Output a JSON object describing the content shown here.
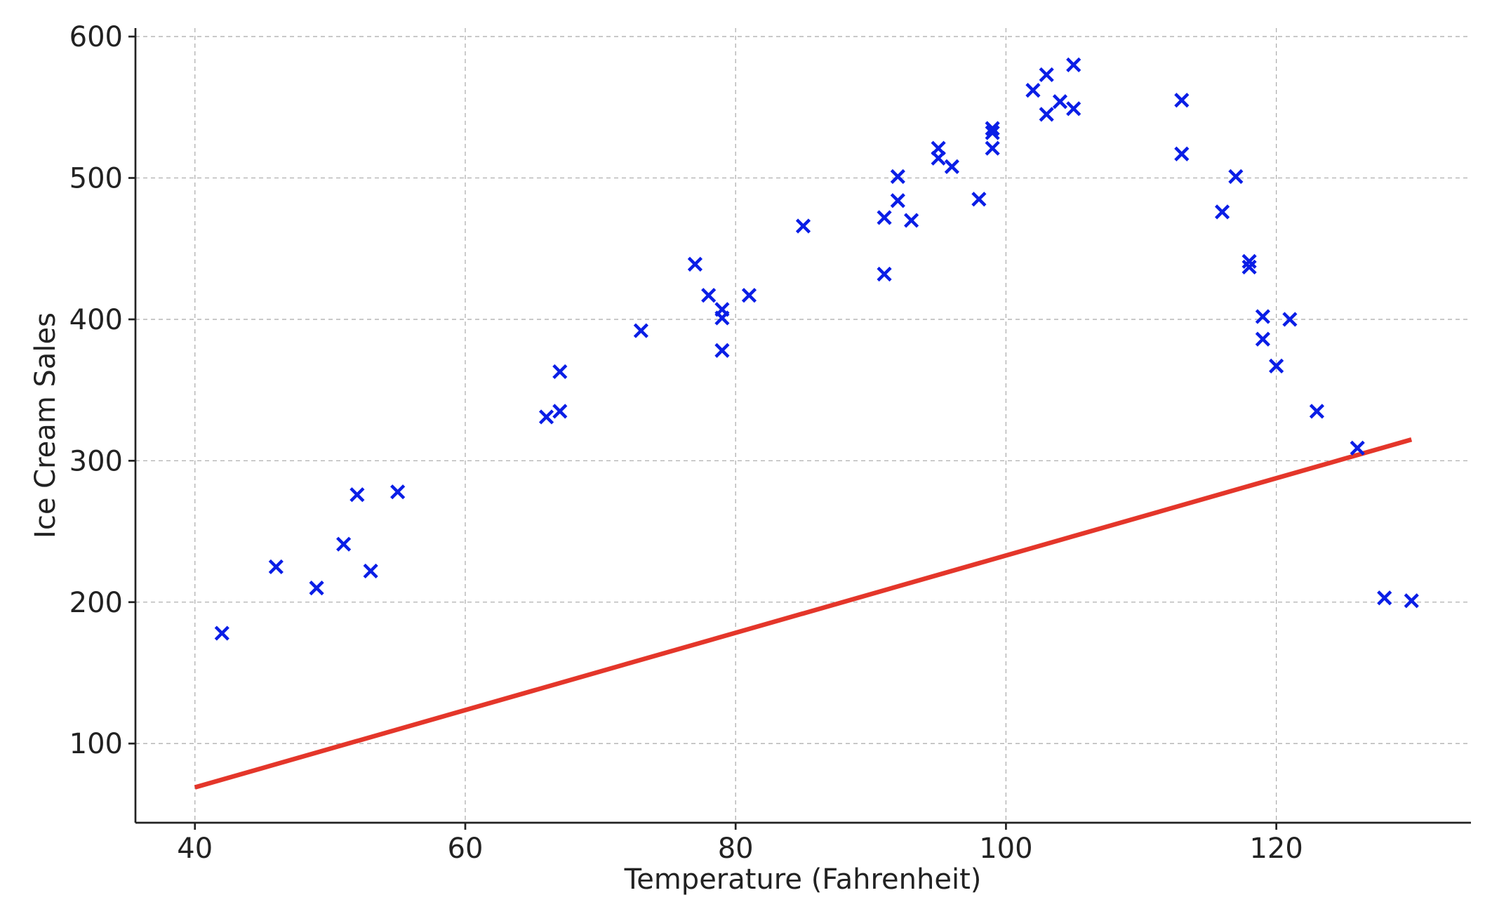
{
  "chart_data": {
    "type": "scatter",
    "title": "",
    "xlabel": "Temperature (Fahrenheit)",
    "ylabel": "Ice Cream Sales",
    "xlim": [
      35.6,
      134.4
    ],
    "ylim": [
      44,
      606
    ],
    "x_ticks": [
      40,
      60,
      80,
      100,
      120
    ],
    "y_ticks": [
      100,
      200,
      300,
      400,
      500,
      600
    ],
    "grid": true,
    "legend": "none",
    "colors": {
      "points": "#0a1ee6",
      "fit_line": "#e4362a"
    },
    "series": [
      {
        "type": "scatter",
        "marker": "x",
        "points": [
          {
            "x": 42,
            "y": 178
          },
          {
            "x": 46,
            "y": 225
          },
          {
            "x": 49,
            "y": 210
          },
          {
            "x": 51,
            "y": 241
          },
          {
            "x": 52,
            "y": 276
          },
          {
            "x": 53,
            "y": 222
          },
          {
            "x": 55,
            "y": 278
          },
          {
            "x": 66,
            "y": 331
          },
          {
            "x": 67,
            "y": 363
          },
          {
            "x": 67,
            "y": 335
          },
          {
            "x": 73,
            "y": 392
          },
          {
            "x": 77,
            "y": 439
          },
          {
            "x": 78,
            "y": 417
          },
          {
            "x": 79,
            "y": 407
          },
          {
            "x": 79,
            "y": 401
          },
          {
            "x": 79,
            "y": 378
          },
          {
            "x": 81,
            "y": 417
          },
          {
            "x": 85,
            "y": 466
          },
          {
            "x": 91,
            "y": 472
          },
          {
            "x": 91,
            "y": 432
          },
          {
            "x": 92,
            "y": 501
          },
          {
            "x": 92,
            "y": 484
          },
          {
            "x": 93,
            "y": 470
          },
          {
            "x": 95,
            "y": 521
          },
          {
            "x": 95,
            "y": 514
          },
          {
            "x": 96,
            "y": 508
          },
          {
            "x": 98,
            "y": 485
          },
          {
            "x": 99,
            "y": 535
          },
          {
            "x": 99,
            "y": 532
          },
          {
            "x": 99,
            "y": 521
          },
          {
            "x": 102,
            "y": 562
          },
          {
            "x": 103,
            "y": 573
          },
          {
            "x": 103,
            "y": 545
          },
          {
            "x": 104,
            "y": 554
          },
          {
            "x": 105,
            "y": 580
          },
          {
            "x": 105,
            "y": 549
          },
          {
            "x": 113,
            "y": 555
          },
          {
            "x": 113,
            "y": 517
          },
          {
            "x": 116,
            "y": 476
          },
          {
            "x": 117,
            "y": 501
          },
          {
            "x": 118,
            "y": 441
          },
          {
            "x": 118,
            "y": 437
          },
          {
            "x": 119,
            "y": 402
          },
          {
            "x": 119,
            "y": 386
          },
          {
            "x": 120,
            "y": 367
          },
          {
            "x": 121,
            "y": 400
          },
          {
            "x": 123,
            "y": 335
          },
          {
            "x": 126,
            "y": 309
          },
          {
            "x": 128,
            "y": 203
          },
          {
            "x": 130,
            "y": 201
          }
        ]
      },
      {
        "type": "line",
        "x": [
          40,
          130
        ],
        "y": [
          69,
          315
        ]
      }
    ]
  }
}
